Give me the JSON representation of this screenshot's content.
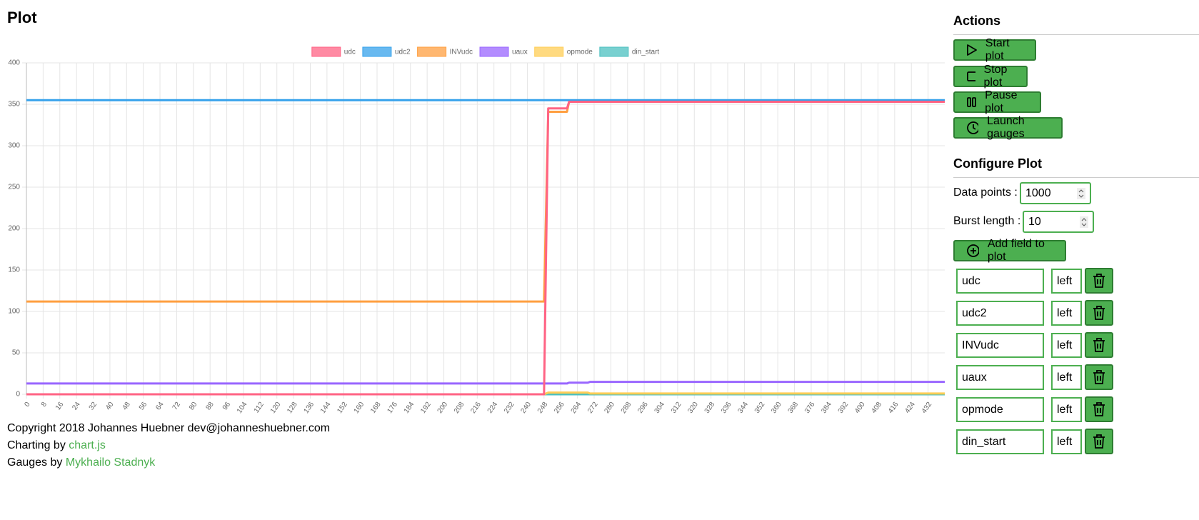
{
  "header": {
    "title": "Plot"
  },
  "chart_data": {
    "type": "line",
    "x": [
      0,
      248,
      250,
      259,
      260,
      269,
      270,
      440
    ],
    "xlim": [
      0,
      440
    ],
    "xticks": [
      0,
      8,
      16,
      24,
      32,
      40,
      48,
      56,
      64,
      72,
      80,
      88,
      96,
      104,
      112,
      120,
      128,
      136,
      144,
      152,
      160,
      168,
      176,
      184,
      192,
      200,
      208,
      216,
      224,
      232,
      240,
      248,
      256,
      264,
      272,
      280,
      288,
      296,
      304,
      312,
      320,
      328,
      336,
      344,
      352,
      360,
      368,
      376,
      384,
      392,
      400,
      408,
      416,
      424,
      432
    ],
    "ylim": [
      0,
      400
    ],
    "yticks": [
      0,
      50,
      100,
      150,
      200,
      250,
      300,
      350,
      400
    ],
    "grid": true,
    "legend": "top",
    "series": [
      {
        "name": "udc",
        "color": "#ff6384",
        "values": [
          0,
          0,
          345,
          345,
          353,
          353,
          353,
          353
        ]
      },
      {
        "name": "udc2",
        "color": "#36a2eb",
        "values": [
          355,
          355,
          355,
          355,
          355,
          355,
          355,
          355
        ]
      },
      {
        "name": "INVudc",
        "color": "#ff9f40",
        "values": [
          112,
          112,
          341,
          341,
          353,
          353,
          353,
          353
        ]
      },
      {
        "name": "uaux",
        "color": "#9966ff",
        "values": [
          13,
          13,
          13,
          13,
          14,
          14,
          15,
          15
        ]
      },
      {
        "name": "opmode",
        "color": "#ffcd56",
        "values": [
          0,
          0,
          2,
          2,
          2,
          2,
          1,
          1
        ]
      },
      {
        "name": "din_start",
        "color": "#4bc0c0",
        "values": [
          0,
          0,
          0,
          0,
          0,
          0,
          0,
          0
        ]
      }
    ]
  },
  "actions": {
    "title": "Actions",
    "buttons": [
      "Start plot",
      "Stop plot",
      "Pause plot",
      "Launch gauges"
    ]
  },
  "configure": {
    "title": "Configure Plot",
    "data_points": {
      "label": "Data points :",
      "value": 1000
    },
    "burst_length": {
      "label": "Burst length :",
      "value": 10
    },
    "add_button": "Add field to plot",
    "fields": [
      {
        "name": "udc",
        "axis": "left"
      },
      {
        "name": "udc2",
        "axis": "left"
      },
      {
        "name": "INVudc",
        "axis": "left"
      },
      {
        "name": "uaux",
        "axis": "left"
      },
      {
        "name": "opmode",
        "axis": "left"
      },
      {
        "name": "din_start",
        "axis": "left"
      }
    ]
  },
  "footer": {
    "copyright": "Copyright 2018 Johannes Huebner dev@johanneshuebner.com",
    "charting": {
      "text": "Charting by",
      "link": "chart.js"
    },
    "gauges": {
      "text": "Gauges by",
      "link": "Mykhailo Stadnyk"
    }
  }
}
